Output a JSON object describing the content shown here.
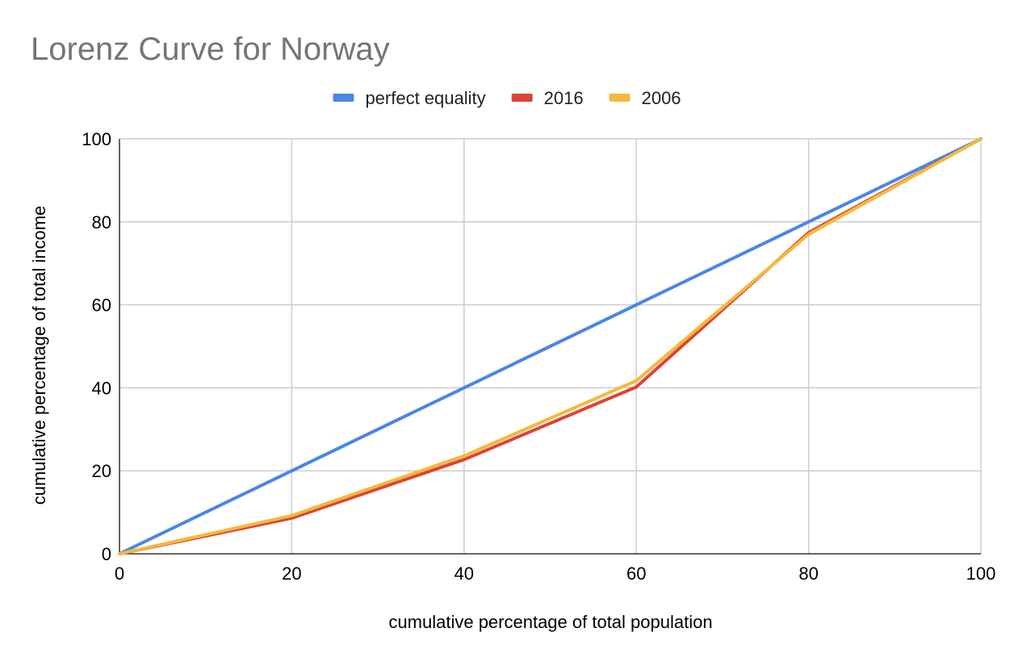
{
  "chart_data": {
    "type": "line",
    "title": "Lorenz Curve for Norway",
    "xlabel": "cumulative percentage of total population",
    "ylabel": "cumulative percentage of total income",
    "x": [
      0,
      20,
      40,
      60,
      80,
      100
    ],
    "xlim": [
      0,
      100
    ],
    "ylim": [
      0,
      100
    ],
    "xticks": [
      0,
      20,
      40,
      60,
      80,
      100
    ],
    "yticks": [
      0,
      20,
      40,
      60,
      80,
      100
    ],
    "grid": true,
    "legend_position": "top",
    "series": [
      {
        "name": "perfect equality",
        "color": "#4a86e8",
        "values": [
          0,
          20,
          40,
          60,
          80,
          100
        ]
      },
      {
        "name": "2016",
        "color": "#db4437",
        "values": [
          0,
          8.6,
          22.7,
          40.2,
          77.4,
          100
        ]
      },
      {
        "name": "2006",
        "color": "#f4b93c",
        "values": [
          0,
          9.2,
          23.6,
          41.7,
          77.0,
          100
        ]
      }
    ]
  }
}
